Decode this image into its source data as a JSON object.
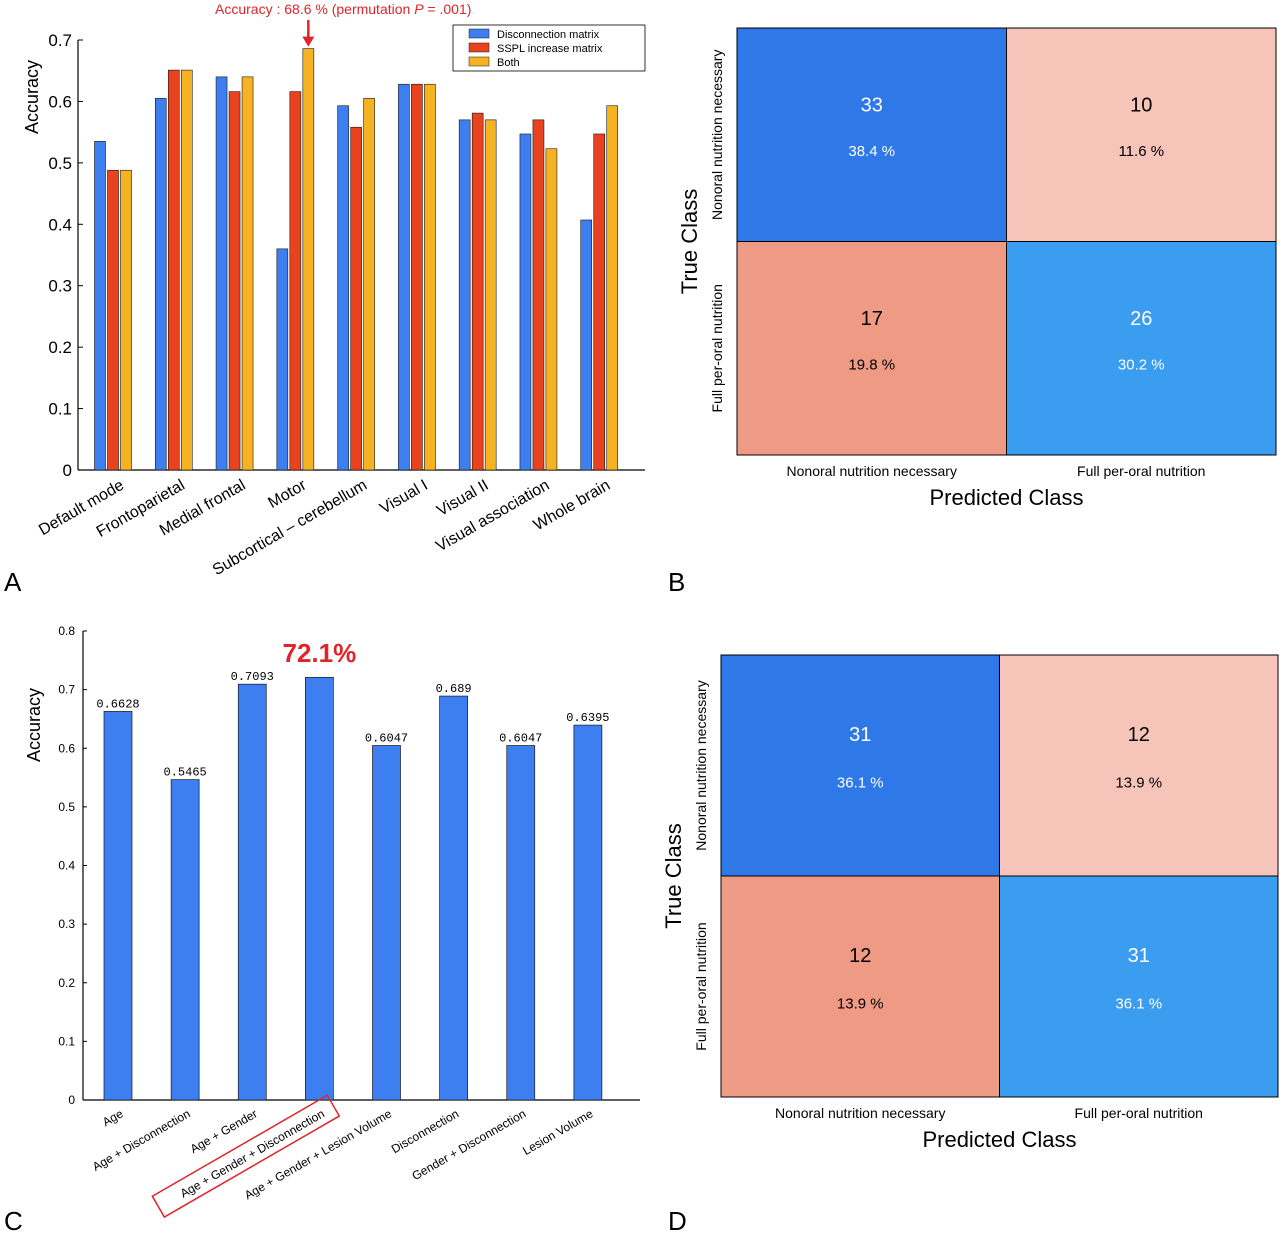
{
  "panel_letters": {
    "a": "A",
    "b": "B",
    "c": "C",
    "d": "D"
  },
  "chart_data": [
    {
      "panel": "A",
      "type": "bar",
      "ylabel": "Accuracy",
      "ylim": [
        0,
        0.7
      ],
      "yticks": [
        "0",
        "0.1",
        "0.2",
        "0.3",
        "0.4",
        "0.5",
        "0.6",
        "0.7"
      ],
      "grid": false,
      "legend_position": "top-right",
      "categories": [
        "Default mode",
        "Frontoparietal",
        "Medial frontal",
        "Motor",
        "Subcortical – cerebellum",
        "Visual I",
        "Visual II",
        "Visual association",
        "Whole brain"
      ],
      "series": [
        {
          "name": "Disconnection matrix",
          "color": "#3d7ef0",
          "values": [
            0.535,
            0.605,
            0.64,
            0.36,
            0.593,
            0.628,
            0.57,
            0.547,
            0.407
          ]
        },
        {
          "name": "SSPL increase matrix",
          "color": "#e8431e",
          "values": [
            0.488,
            0.651,
            0.616,
            0.616,
            0.558,
            0.628,
            0.581,
            0.57,
            0.547
          ]
        },
        {
          "name": "Both",
          "color": "#f5b324",
          "values": [
            0.488,
            0.651,
            0.64,
            0.686,
            0.605,
            0.628,
            0.57,
            0.523,
            0.593
          ]
        }
      ],
      "annotation": {
        "prefix": "Accuracy : 68.6 % (permutation ",
        "italic": "P",
        "suffix": " = .001)"
      }
    },
    {
      "panel": "B",
      "type": "heatmap",
      "xlabel": "Predicted Class",
      "ylabel": "True Class",
      "classes": [
        "Nonoral nutrition necessary",
        "Full per-oral nutrition"
      ],
      "cells": [
        [
          {
            "count": "33",
            "pct": "38.4 %",
            "color": "#2e78e8",
            "text_color": "#ffffff"
          },
          {
            "count": "10",
            "pct": "11.6 %",
            "color": "#f6c4b8",
            "text_color": "#000000"
          }
        ],
        [
          {
            "count": "17",
            "pct": "19.8 %",
            "color": "#ef9a85",
            "text_color": "#000000"
          },
          {
            "count": "26",
            "pct": "30.2 %",
            "color": "#3b9df0",
            "text_color": "#ffffff"
          }
        ]
      ]
    },
    {
      "panel": "C",
      "type": "bar",
      "ylabel": "Accuracy",
      "ylim": [
        0,
        0.8
      ],
      "yticks": [
        "0",
        "0.1",
        "0.2",
        "0.3",
        "0.4",
        "0.5",
        "0.6",
        "0.7",
        "0.8"
      ],
      "grid": false,
      "categories": [
        "Age",
        "Age + Disconnection",
        "Age + Gender",
        "Age + Gender + Disconnection",
        "Age + Gender + Lesion Volume",
        "Disconnection",
        "Gender + Disconnection",
        "Lesion Volume"
      ],
      "values": [
        0.6628,
        0.5465,
        0.7093,
        0.721,
        0.6047,
        0.689,
        0.6047,
        0.6395
      ],
      "value_labels": [
        "0.6628",
        "0.5465",
        "0.7093",
        "",
        "0.6047",
        "0.689",
        "0.6047",
        "0.6395"
      ],
      "color": "#3d7ef0",
      "highlight_label": "72.1%",
      "highlight_index": 3
    },
    {
      "panel": "D",
      "type": "heatmap",
      "xlabel": "Predicted Class",
      "ylabel": "True Class",
      "classes": [
        "Nonoral nutrition necessary",
        "Full per-oral nutrition"
      ],
      "cells": [
        [
          {
            "count": "31",
            "pct": "36.1 %",
            "color": "#2e78e8",
            "text_color": "#ffffff"
          },
          {
            "count": "12",
            "pct": "13.9 %",
            "color": "#f6c4b8",
            "text_color": "#000000"
          }
        ],
        [
          {
            "count": "12",
            "pct": "13.9 %",
            "color": "#ef9a85",
            "text_color": "#000000"
          },
          {
            "count": "31",
            "pct": "36.1 %",
            "color": "#3b9df0",
            "text_color": "#ffffff"
          }
        ]
      ]
    }
  ]
}
